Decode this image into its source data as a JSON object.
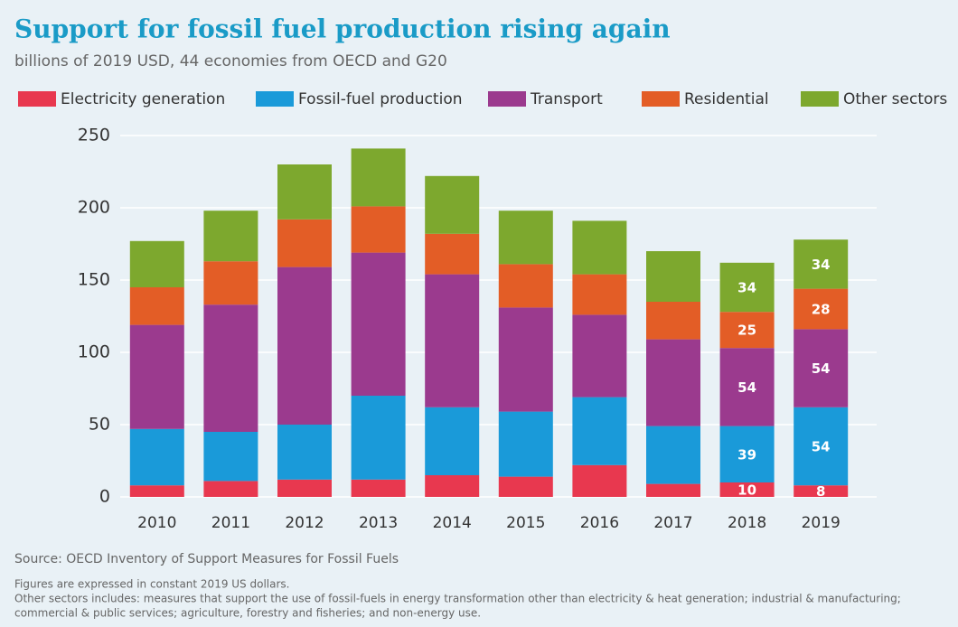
{
  "chart_data": {
    "type": "stacked-bar",
    "title": "Support for fossil fuel production rising again",
    "subtitle": "billions of 2019 USD, 44 economies from OECD and G20",
    "categories": [
      "2010",
      "2011",
      "2012",
      "2013",
      "2014",
      "2015",
      "2016",
      "2017",
      "2018",
      "2019"
    ],
    "series": [
      {
        "name": "Electricity generation",
        "color": "#e8384f",
        "values": [
          8,
          11,
          12,
          12,
          15,
          14,
          22,
          9,
          10,
          8
        ],
        "value_labels": [
          null,
          null,
          null,
          null,
          null,
          null,
          null,
          null,
          "10",
          "8"
        ]
      },
      {
        "name": "Fossil-fuel production",
        "color": "#1a9ad9",
        "values": [
          39,
          34,
          38,
          58,
          47,
          45,
          47,
          40,
          39,
          54
        ],
        "value_labels": [
          null,
          null,
          null,
          null,
          null,
          null,
          null,
          null,
          "39",
          "54"
        ]
      },
      {
        "name": "Transport",
        "color": "#9b3a8e",
        "values": [
          72,
          88,
          109,
          99,
          92,
          72,
          57,
          60,
          54,
          54
        ],
        "value_labels": [
          null,
          null,
          null,
          null,
          null,
          null,
          null,
          null,
          "54",
          "54"
        ]
      },
      {
        "name": "Residential",
        "color": "#e35d26",
        "values": [
          26,
          30,
          33,
          32,
          28,
          30,
          28,
          26,
          25,
          28
        ],
        "value_labels": [
          null,
          null,
          null,
          null,
          null,
          null,
          null,
          null,
          "25",
          "28"
        ]
      },
      {
        "name": "Other sectors",
        "color": "#7da82e",
        "values": [
          32,
          35,
          38,
          40,
          40,
          37,
          37,
          35,
          34,
          34
        ],
        "value_labels": [
          null,
          null,
          null,
          null,
          null,
          null,
          null,
          null,
          "34",
          "34"
        ]
      }
    ],
    "ylim": [
      0,
      250
    ],
    "yticks": [
      0,
      50,
      100,
      150,
      200,
      250
    ],
    "grid": true,
    "source": "Source: OECD Inventory of Support Measures for Fossil Fuels",
    "notes": [
      "Figures are expressed in constant 2019 US dollars.",
      "Other sectors includes: measures that support the use of fossil-fuels in energy transformation other than electricity & heat generation; industrial & manufacturing;",
      "commercial & public services; agriculture, forestry and fisheries; and non-energy use."
    ]
  }
}
